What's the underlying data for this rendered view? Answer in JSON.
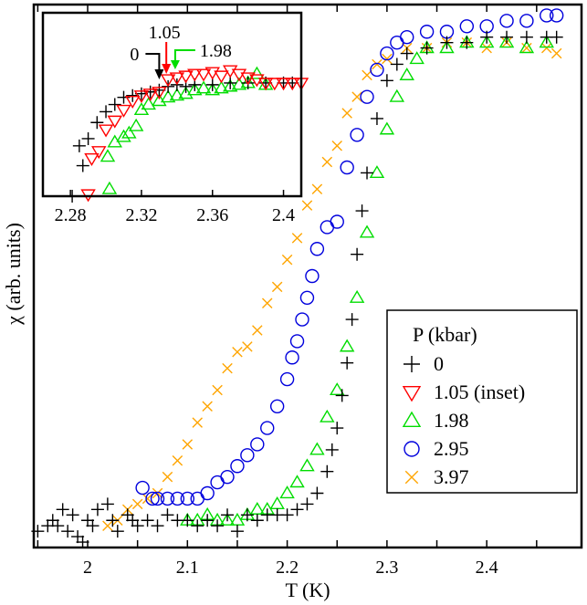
{
  "chart_data": {
    "type": "scatter",
    "title": "",
    "xlabel": "T (K)",
    "ylabel": "χ (arb. units)",
    "xlim": [
      1.946,
      2.495
    ],
    "ylim": [
      0,
      1
    ],
    "xticks": [
      2,
      2.1,
      2.2,
      2.3,
      2.4
    ],
    "xtick_labels": [
      "2",
      "2.1",
      "2.2",
      "2.3",
      "2.4"
    ],
    "y_tick_labels_shown": false,
    "grid": false,
    "legend": {
      "title": "P (kbar)",
      "placement": "bottom-right"
    },
    "series": [
      {
        "name": "0",
        "marker": "plus",
        "color": "#000000",
        "x": [
          1.95,
          1.96,
          1.965,
          1.97,
          1.975,
          1.98,
          1.985,
          1.99,
          1.995,
          2.0,
          2.005,
          2.01,
          2.02,
          2.025,
          2.03,
          2.04,
          2.045,
          2.05,
          2.06,
          2.07,
          2.08,
          2.09,
          2.1,
          2.11,
          2.12,
          2.13,
          2.14,
          2.15,
          2.16,
          2.17,
          2.18,
          2.19,
          2.2,
          2.21,
          2.22,
          2.23,
          2.24,
          2.245,
          2.25,
          2.255,
          2.26,
          2.265,
          2.27,
          2.275,
          2.28,
          2.29,
          2.3,
          2.31,
          2.32,
          2.34,
          2.36,
          2.38,
          2.4,
          2.42,
          2.44,
          2.46,
          2.47
        ],
        "y": [
          0.03,
          0.04,
          0.05,
          0.04,
          0.07,
          0.03,
          0.06,
          0.02,
          0.01,
          0.05,
          0.04,
          0.07,
          0.08,
          0.05,
          0.03,
          0.06,
          0.05,
          0.04,
          0.05,
          0.04,
          0.06,
          0.05,
          0.05,
          0.04,
          0.05,
          0.04,
          0.06,
          0.03,
          0.06,
          0.05,
          0.06,
          0.06,
          0.06,
          0.07,
          0.08,
          0.1,
          0.14,
          0.18,
          0.22,
          0.28,
          0.34,
          0.42,
          0.54,
          0.62,
          0.69,
          0.79,
          0.86,
          0.89,
          0.91,
          0.92,
          0.93,
          0.93,
          0.94,
          0.94,
          0.94,
          0.94,
          0.94
        ]
      },
      {
        "name": "1.05 (inset)",
        "marker": "triangle-down",
        "color": "#ff0000",
        "x": [],
        "y": []
      },
      {
        "name": "1.98",
        "marker": "triangle-up",
        "color": "#00dd00",
        "x": [
          2.1,
          2.11,
          2.12,
          2.13,
          2.14,
          2.15,
          2.16,
          2.17,
          2.18,
          2.19,
          2.2,
          2.21,
          2.22,
          2.23,
          2.24,
          2.25,
          2.26,
          2.27,
          2.28,
          2.29,
          2.3,
          2.31,
          2.32,
          2.33,
          2.34,
          2.36,
          2.38,
          2.4,
          2.42,
          2.44,
          2.46
        ],
        "y": [
          0.05,
          0.05,
          0.06,
          0.05,
          0.05,
          0.05,
          0.06,
          0.07,
          0.07,
          0.08,
          0.1,
          0.12,
          0.15,
          0.18,
          0.24,
          0.29,
          0.37,
          0.46,
          0.58,
          0.69,
          0.77,
          0.83,
          0.87,
          0.9,
          0.92,
          0.92,
          0.93,
          0.93,
          0.93,
          0.92,
          0.93
        ]
      },
      {
        "name": "2.95",
        "marker": "circle",
        "color": "#0000dd",
        "x": [
          2.055,
          2.065,
          2.07,
          2.08,
          2.09,
          2.1,
          2.11,
          2.12,
          2.13,
          2.14,
          2.15,
          2.16,
          2.17,
          2.18,
          2.19,
          2.2,
          2.205,
          2.21,
          2.215,
          2.22,
          2.225,
          2.23,
          2.24,
          2.25,
          2.26,
          2.27,
          2.28,
          2.29,
          2.3,
          2.31,
          2.32,
          2.34,
          2.36,
          2.38,
          2.4,
          2.42,
          2.44,
          2.46,
          2.47
        ],
        "y": [
          0.11,
          0.09,
          0.09,
          0.09,
          0.09,
          0.09,
          0.09,
          0.1,
          0.12,
          0.13,
          0.15,
          0.17,
          0.19,
          0.22,
          0.26,
          0.31,
          0.35,
          0.38,
          0.42,
          0.46,
          0.5,
          0.55,
          0.59,
          0.6,
          0.7,
          0.76,
          0.83,
          0.88,
          0.91,
          0.93,
          0.94,
          0.95,
          0.95,
          0.96,
          0.96,
          0.97,
          0.97,
          0.98,
          0.98
        ]
      },
      {
        "name": "3.97",
        "marker": "x",
        "color": "#ffa500",
        "x": [
          2.02,
          2.03,
          2.04,
          2.05,
          2.06,
          2.07,
          2.08,
          2.09,
          2.1,
          2.11,
          2.12,
          2.13,
          2.14,
          2.15,
          2.16,
          2.17,
          2.18,
          2.19,
          2.2,
          2.21,
          2.22,
          2.23,
          2.24,
          2.25,
          2.26,
          2.27,
          2.28,
          2.29,
          2.3,
          2.32,
          2.34,
          2.36,
          2.38,
          2.4,
          2.42,
          2.44,
          2.46,
          2.47
        ],
        "y": [
          0.04,
          0.05,
          0.07,
          0.08,
          0.09,
          0.1,
          0.13,
          0.16,
          0.19,
          0.23,
          0.26,
          0.29,
          0.33,
          0.36,
          0.37,
          0.4,
          0.45,
          0.48,
          0.53,
          0.57,
          0.63,
          0.66,
          0.71,
          0.74,
          0.8,
          0.83,
          0.87,
          0.89,
          0.9,
          0.92,
          0.92,
          0.93,
          0.93,
          0.92,
          0.93,
          0.92,
          0.92,
          0.91
        ]
      }
    ],
    "inset": {
      "xlim": [
        2.2645,
        2.41
      ],
      "ylim": [
        0,
        1
      ],
      "xticks": [
        2.28,
        2.32,
        2.36,
        2.4
      ],
      "xtick_labels": [
        "2.28",
        "2.32",
        "2.36",
        "2.4"
      ],
      "series": [
        {
          "name": "0",
          "marker": "plus",
          "color": "#000000",
          "x": [
            2.281,
            2.287,
            2.285,
            2.29,
            2.295,
            2.3,
            2.305,
            2.31,
            2.315,
            2.32,
            2.325,
            2.33,
            2.335,
            2.34,
            2.345,
            2.35,
            2.36,
            2.37,
            2.38,
            2.39,
            2.4,
            2.405
          ],
          "y": [
            0.0,
            0.17,
            0.28,
            0.32,
            0.41,
            0.47,
            0.51,
            0.55,
            0.56,
            0.57,
            0.58,
            0.59,
            0.61,
            0.62,
            0.61,
            0.62,
            0.62,
            0.63,
            0.63,
            0.63,
            0.63,
            0.63
          ]
        },
        {
          "name": "1.05",
          "marker": "triangle-down",
          "color": "#ff0000",
          "x": [
            2.29,
            2.292,
            2.296,
            2.3,
            2.305,
            2.31,
            2.315,
            2.32,
            2.325,
            2.33,
            2.335,
            2.34,
            2.345,
            2.35,
            2.355,
            2.36,
            2.365,
            2.37,
            2.375,
            2.38,
            2.385,
            2.39,
            2.395,
            2.4,
            2.405,
            2.41
          ],
          "y": [
            0.01,
            0.21,
            0.25,
            0.37,
            0.42,
            0.48,
            0.53,
            0.56,
            0.57,
            0.58,
            0.65,
            0.66,
            0.67,
            0.68,
            0.68,
            0.69,
            0.67,
            0.7,
            0.68,
            0.66,
            0.65,
            0.63,
            0.63,
            0.63,
            0.63,
            0.63
          ]
        },
        {
          "name": "1.98",
          "marker": "triangle-up",
          "color": "#00dd00",
          "x": [
            2.302,
            2.301,
            2.305,
            2.31,
            2.313,
            2.317,
            2.32,
            2.324,
            2.33,
            2.335,
            2.34,
            2.345,
            2.35,
            2.355,
            2.36,
            2.365,
            2.37,
            2.375,
            2.38,
            2.385,
            2.39
          ],
          "y": [
            0.04,
            0.22,
            0.3,
            0.33,
            0.35,
            0.39,
            0.48,
            0.51,
            0.53,
            0.55,
            0.56,
            0.57,
            0.59,
            0.6,
            0.59,
            0.6,
            0.61,
            0.62,
            0.63,
            0.68,
            0.62
          ]
        }
      ],
      "annotations": [
        {
          "text": "0",
          "x": 2.33,
          "color": "#000000"
        },
        {
          "text": "1.05",
          "x": 2.334,
          "color": "#ff0000"
        },
        {
          "text": "1.98",
          "x": 2.339,
          "color": "#00dd00"
        }
      ]
    }
  }
}
